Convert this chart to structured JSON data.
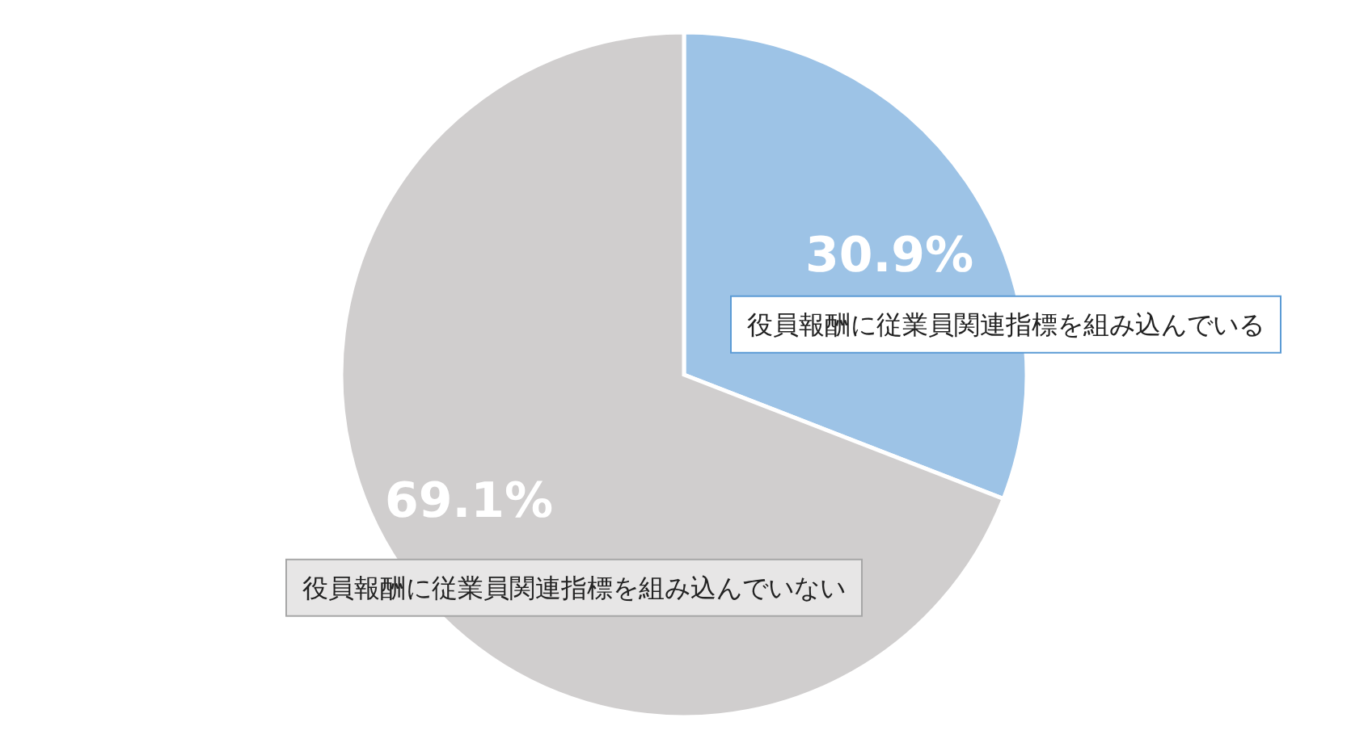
{
  "chart_data": {
    "type": "pie",
    "categories": [
      "役員報酬に従業員関連指標を組み込んでいる",
      "役員報酬に従業員関連指標を組み込んでいない"
    ],
    "values": [
      30.9,
      69.1
    ],
    "colors": [
      "#9dc3e6",
      "#d0cece"
    ],
    "value_labels": [
      "30.9%",
      "69.1%"
    ]
  }
}
